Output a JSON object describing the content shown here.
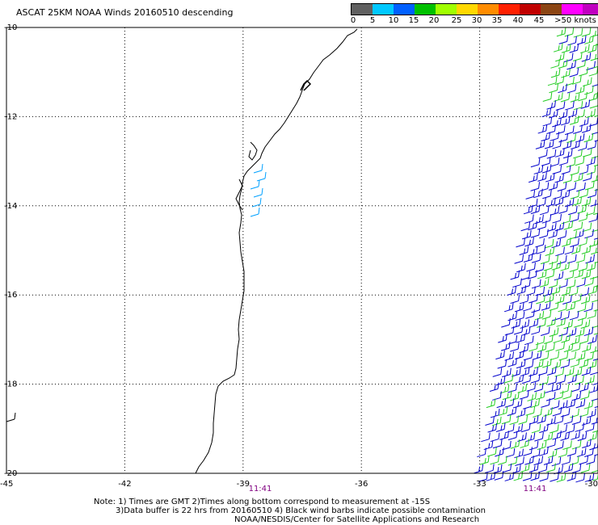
{
  "title": "ASCAT 25KM NOAA Winds 20160510 descending",
  "colorbar": {
    "colors": [
      "#606060",
      "#00c8ff",
      "#0060ff",
      "#00c000",
      "#a0ff00",
      "#ffd800",
      "#ff8c00",
      "#ff2000",
      "#c00000",
      "#8b4513",
      "#ff00ff",
      "#c000c0",
      "#6a0dad"
    ],
    "labels": [
      "0",
      "5",
      "10",
      "15",
      "20",
      "25",
      "30",
      "35",
      "40",
      "45",
      ">50 knots"
    ]
  },
  "map": {
    "lat_range": [
      -20,
      -10
    ],
    "lon_range": [
      -45,
      -30
    ],
    "lat_ticks": [
      "-10",
      "-12",
      "-14",
      "-16",
      "-18",
      "-20"
    ],
    "lon_ticks": [
      "-45",
      "-42",
      "-39",
      "-36",
      "-33",
      "-30"
    ],
    "grid": "dotted",
    "wind_colors": {
      "blue": "#0000cc",
      "green": "#22cc22",
      "cyan": "#00a0ff"
    }
  },
  "times": [
    "11:41",
    "11:41"
  ],
  "notes": {
    "line1": "Note: 1) Times are GMT 2)Times along bottom correspond to measurement at -15S",
    "line2": "3)Data buffer is 22 hrs from 20160510 4) Black wind barbs indicate possible contamination",
    "line3": "NOAA/NESDIS/Center for Satellite Applications and Research"
  }
}
